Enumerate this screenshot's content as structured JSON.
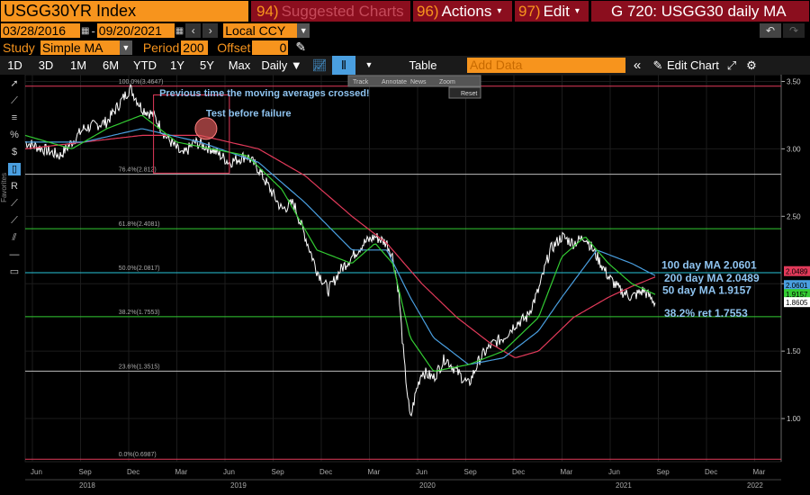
{
  "header": {
    "ticker": "USGG30YR Index",
    "suggested": {
      "num": "94)",
      "label": "Suggested Charts"
    },
    "actions": {
      "num": "96)",
      "label": "Actions"
    },
    "edit": {
      "num": "97)",
      "label": "Edit"
    },
    "chart_title": "G 720: USGG30 daily MA"
  },
  "range": {
    "start": "03/28/2016",
    "end": "09/20/2021",
    "currency": "Local CCY",
    "prev_icon": "chevron-left-icon",
    "next_icon": "chevron-right-icon"
  },
  "study": {
    "label": "Study",
    "type": "Simple MA",
    "period_label": "Period",
    "period": "200",
    "offset_label": "Offset",
    "offset": "0"
  },
  "toolbar": {
    "periods": [
      "1D",
      "3D",
      "1M",
      "6M",
      "YTD",
      "1Y",
      "5Y",
      "Max"
    ],
    "active_period": "5Y",
    "frequency": "Daily ▼",
    "table_label": "Table",
    "add_data_placeholder": "Add Data",
    "edit_chart_label": "Edit Chart"
  },
  "mini_toolbar": {
    "items": [
      "Track",
      "Annotate",
      "News",
      "Zoom"
    ],
    "reset": "Reset"
  },
  "colors": {
    "orange": "#f7941d",
    "menu_red": "#8b0e1e",
    "price": "#ffffff",
    "ma50": "#33cc33",
    "ma100": "#4a9fe0",
    "ma200": "#e23a5a",
    "annotation": "#8fc4f0"
  },
  "chart_data": {
    "type": "line",
    "y_ticks": [
      "3.50",
      "3.00",
      "2.50",
      "2.00",
      "1.50",
      "1.00"
    ],
    "ylim": [
      0.68,
      3.55
    ],
    "x_months": [
      "Jun",
      "Sep",
      "Dec",
      "Mar",
      "Jun",
      "Sep",
      "Dec",
      "Mar",
      "Jun",
      "Sep",
      "Dec",
      "Mar",
      "Jun",
      "Sep",
      "Dec",
      "Mar"
    ],
    "x_years": [
      "2018",
      "2019",
      "2020",
      "2021",
      "2022"
    ],
    "fib_levels": [
      {
        "label": "100.0%(3.4647)",
        "value": 3.4647,
        "color": "#e23a5a"
      },
      {
        "label": "76.4%(2.812)",
        "value": 2.812,
        "color": "#bbbbbb"
      },
      {
        "label": "61.8%(2.4081)",
        "value": 2.4081,
        "color": "#33cc33"
      },
      {
        "label": "50.0%(2.0817)",
        "value": 2.0817,
        "color": "#29c4d9"
      },
      {
        "label": "38.2%(1.7553)",
        "value": 1.7553,
        "color": "#33cc33"
      },
      {
        "label": "23.6%(1.3515)",
        "value": 1.3515,
        "color": "#bbbbbb"
      },
      {
        "label": "0.0%(0.6987)",
        "value": 0.6987,
        "color": "#e23a5a"
      }
    ],
    "annotations": [
      {
        "text": "Previous time the moving averages crossed!"
      },
      {
        "text": "Test before failure"
      },
      {
        "text": "100 day MA 2.0601"
      },
      {
        "text": "200 day MA 2.0489"
      },
      {
        "text": "50 day MA 1.9157"
      },
      {
        "text": "38.2% ret 1.7553"
      }
    ],
    "last_values": [
      {
        "label": "2.0489",
        "value": 2.0489,
        "color": "#e23a5a"
      },
      {
        "label": "2.0601",
        "value": 2.0601,
        "color": "#4a9fe0"
      },
      {
        "label": "1.9157",
        "value": 1.9157,
        "color": "#33cc33"
      },
      {
        "label": "1.8605",
        "value": 1.8605,
        "color": "#ffffff"
      }
    ],
    "price_keypoints": [
      [
        0,
        3.05
      ],
      [
        6,
        2.95
      ],
      [
        10,
        3.15
      ],
      [
        14,
        3.2
      ],
      [
        18,
        3.45
      ],
      [
        20,
        3.3
      ],
      [
        22,
        3.25
      ],
      [
        24,
        3.1
      ],
      [
        27,
        2.95
      ],
      [
        29,
        3.05
      ],
      [
        32,
        3.0
      ],
      [
        35,
        2.9
      ],
      [
        38,
        2.95
      ],
      [
        40,
        2.85
      ],
      [
        42,
        2.7
      ],
      [
        44,
        2.55
      ],
      [
        46,
        2.6
      ],
      [
        48,
        2.35
      ],
      [
        50,
        2.1
      ],
      [
        52,
        1.95
      ],
      [
        54,
        2.1
      ],
      [
        56,
        2.2
      ],
      [
        58,
        2.3
      ],
      [
        60,
        2.35
      ],
      [
        62,
        2.3
      ],
      [
        63,
        2.2
      ],
      [
        64,
        1.95
      ],
      [
        65,
        1.4
      ],
      [
        66,
        0.99
      ],
      [
        67,
        1.2
      ],
      [
        68,
        1.35
      ],
      [
        70,
        1.3
      ],
      [
        72,
        1.45
      ],
      [
        74,
        1.35
      ],
      [
        76,
        1.25
      ],
      [
        78,
        1.45
      ],
      [
        80,
        1.55
      ],
      [
        82,
        1.6
      ],
      [
        84,
        1.7
      ],
      [
        86,
        1.75
      ],
      [
        88,
        1.95
      ],
      [
        90,
        2.25
      ],
      [
        92,
        2.35
      ],
      [
        94,
        2.3
      ],
      [
        96,
        2.35
      ],
      [
        98,
        2.2
      ],
      [
        100,
        2.05
      ],
      [
        102,
        1.95
      ],
      [
        104,
        1.9
      ],
      [
        106,
        1.95
      ],
      [
        108,
        1.86
      ]
    ],
    "ma50_keypoints": [
      [
        0,
        3.1
      ],
      [
        8,
        3.0
      ],
      [
        14,
        3.15
      ],
      [
        20,
        3.25
      ],
      [
        26,
        3.05
      ],
      [
        32,
        3.0
      ],
      [
        38,
        2.95
      ],
      [
        44,
        2.7
      ],
      [
        50,
        2.25
      ],
      [
        56,
        2.15
      ],
      [
        60,
        2.3
      ],
      [
        63,
        2.15
      ],
      [
        66,
        1.6
      ],
      [
        70,
        1.35
      ],
      [
        76,
        1.4
      ],
      [
        82,
        1.5
      ],
      [
        88,
        1.75
      ],
      [
        92,
        2.2
      ],
      [
        96,
        2.35
      ],
      [
        100,
        2.15
      ],
      [
        104,
        2.0
      ],
      [
        108,
        1.92
      ]
    ],
    "ma100_keypoints": [
      [
        0,
        3.05
      ],
      [
        10,
        3.05
      ],
      [
        20,
        3.15
      ],
      [
        30,
        3.05
      ],
      [
        40,
        2.9
      ],
      [
        48,
        2.6
      ],
      [
        56,
        2.25
      ],
      [
        62,
        2.25
      ],
      [
        66,
        1.9
      ],
      [
        70,
        1.6
      ],
      [
        76,
        1.4
      ],
      [
        82,
        1.45
      ],
      [
        88,
        1.65
      ],
      [
        92,
        1.9
      ],
      [
        98,
        2.25
      ],
      [
        104,
        2.15
      ],
      [
        108,
        2.06
      ]
    ],
    "ma200_keypoints": [
      [
        0,
        3.0
      ],
      [
        10,
        3.05
      ],
      [
        20,
        3.1
      ],
      [
        30,
        3.1
      ],
      [
        40,
        3.0
      ],
      [
        48,
        2.8
      ],
      [
        56,
        2.5
      ],
      [
        62,
        2.3
      ],
      [
        68,
        2.0
      ],
      [
        74,
        1.75
      ],
      [
        80,
        1.55
      ],
      [
        84,
        1.45
      ],
      [
        88,
        1.5
      ],
      [
        94,
        1.75
      ],
      [
        100,
        1.9
      ],
      [
        104,
        1.98
      ],
      [
        108,
        2.05
      ]
    ],
    "highlight_circle": {
      "x_index": 31,
      "value": 3.15
    }
  }
}
